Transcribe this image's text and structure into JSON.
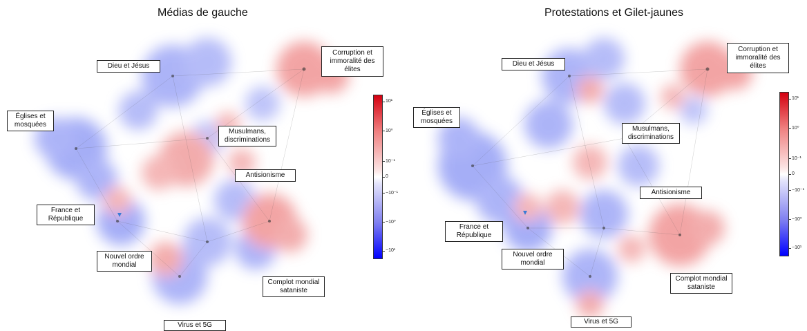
{
  "panels": [
    {
      "title": "Médias de gauche",
      "labels": [
        "Corruption et\nimmoralité des\nélites",
        "Dieu et Jésus",
        "Églises et\nmosquées",
        "Musulmans,\ndiscriminations",
        "Antisionisme",
        "France et\nRépublique",
        "Nouvel ordre\nmondial",
        "Complot mondial\nsataniste",
        "Virus et 5G"
      ]
    },
    {
      "title": "Protestations et Gilet-jaunes",
      "labels": [
        "Corruption et\nimmoralité des\nélites",
        "Dieu et Jésus",
        "Églises et\nmosquées",
        "Musulmans,\ndiscriminations",
        "Antisionisme",
        "France et\nRépublique",
        "Nouvel ordre\nmondial",
        "Complot mondial\nsataniste",
        "Virus et 5G"
      ]
    }
  ],
  "colorbar": {
    "ticks": [
      "10¹",
      "10⁰",
      "10⁻¹",
      "0",
      "−10⁻¹",
      "−10⁰",
      "−10¹"
    ],
    "colors": {
      "high": "#d40010",
      "mid": "#ffffff",
      "low": "#0000ff"
    }
  }
}
